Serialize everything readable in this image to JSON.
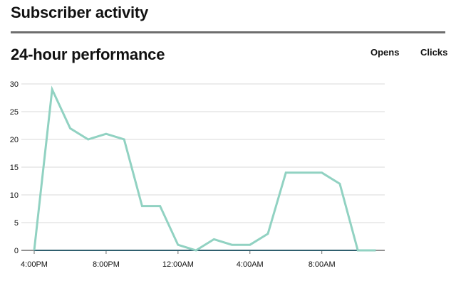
{
  "header": {
    "title": "Subscriber activity"
  },
  "section": {
    "title": "24-hour performance"
  },
  "legend": {
    "opens": "Opens",
    "clicks": "Clicks"
  },
  "colors": {
    "opens": "#91d2c2",
    "clicks": "#2f5f6e",
    "grid": "#d8d8d8",
    "rule": "#6e6e6e"
  },
  "chart_data": {
    "type": "line",
    "title": "",
    "xlabel": "",
    "ylabel": "",
    "ylim": [
      0,
      30
    ],
    "yticks": [
      0,
      5,
      10,
      15,
      20,
      25,
      30
    ],
    "x": [
      "4:00PM",
      "5:00PM",
      "6:00PM",
      "7:00PM",
      "8:00PM",
      "9:00PM",
      "10:00PM",
      "11:00PM",
      "12:00AM",
      "1:00AM",
      "2:00AM",
      "3:00AM",
      "4:00AM",
      "5:00AM",
      "6:00AM",
      "7:00AM",
      "8:00AM",
      "9:00AM",
      "10:00AM",
      "11:00AM"
    ],
    "xtick_labels": [
      "4:00PM",
      "8:00PM",
      "12:00AM",
      "4:00AM",
      "8:00AM"
    ],
    "grid": true,
    "legend_position": "top-right",
    "series": [
      {
        "name": "Opens",
        "values": [
          0,
          29,
          22,
          20,
          21,
          20,
          8,
          8,
          1,
          0,
          2,
          1,
          1,
          3,
          14,
          14,
          14,
          12,
          0,
          0
        ]
      },
      {
        "name": "Clicks",
        "values": [
          0,
          0,
          0,
          0,
          0,
          0,
          0,
          0,
          0,
          0,
          0,
          0,
          0,
          0,
          0,
          0,
          0,
          0,
          0,
          0
        ]
      }
    ]
  }
}
